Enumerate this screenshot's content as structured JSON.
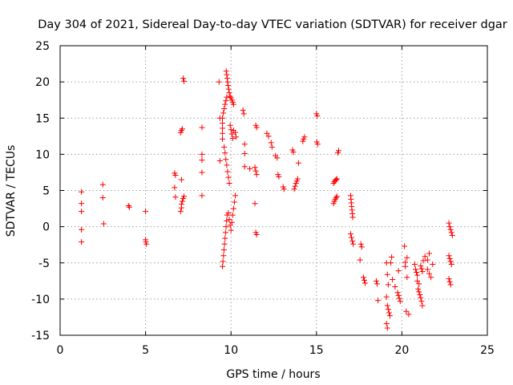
{
  "chart_data": {
    "type": "scatter",
    "title": "Day 304 of 2021, Sidereal Day-to-day VTEC variation (SDTVAR) for receiver dgar",
    "xlabel": "GPS time / hours",
    "ylabel": "SDTVAR / TECUs",
    "xlim": [
      0,
      25
    ],
    "ylim": [
      -15,
      25
    ],
    "xticks": [
      0,
      5,
      10,
      15,
      20,
      25
    ],
    "yticks": [
      -15,
      -10,
      -5,
      0,
      5,
      10,
      15,
      20,
      25
    ],
    "xtick_labels": [
      "0",
      "5",
      "10",
      "15",
      "20",
      "25"
    ],
    "ytick_labels": [
      "-15",
      "-10",
      "-5",
      "0",
      "5",
      "10",
      "15",
      "20",
      "25"
    ],
    "grid": true,
    "marker": "+",
    "color": "#ff0000",
    "series": [
      {
        "name": "SDTVAR",
        "points": [
          [
            1.25,
            4.8
          ],
          [
            1.25,
            3.2
          ],
          [
            1.25,
            2.1
          ],
          [
            1.25,
            -0.4
          ],
          [
            1.25,
            -2.1
          ],
          [
            2.5,
            5.8
          ],
          [
            2.5,
            4.0
          ],
          [
            2.55,
            0.4
          ],
          [
            4.0,
            2.9
          ],
          [
            4.05,
            2.7
          ],
          [
            5.0,
            2.1
          ],
          [
            5.0,
            -1.8
          ],
          [
            5.02,
            -2.1
          ],
          [
            5.05,
            -2.4
          ],
          [
            6.7,
            7.4
          ],
          [
            6.75,
            7.1
          ],
          [
            6.7,
            5.4
          ],
          [
            6.75,
            4.1
          ],
          [
            7.05,
            13.0
          ],
          [
            7.1,
            13.3
          ],
          [
            7.15,
            13.5
          ],
          [
            7.1,
            6.5
          ],
          [
            7.05,
            2.1
          ],
          [
            7.1,
            2.6
          ],
          [
            7.1,
            3.1
          ],
          [
            7.15,
            3.5
          ],
          [
            7.2,
            3.9
          ],
          [
            7.25,
            4.2
          ],
          [
            7.2,
            20.5
          ],
          [
            7.25,
            20.1
          ],
          [
            8.3,
            13.7
          ],
          [
            8.3,
            10.0
          ],
          [
            8.3,
            9.2
          ],
          [
            8.3,
            7.5
          ],
          [
            8.3,
            4.3
          ],
          [
            9.3,
            20.0
          ],
          [
            9.35,
            15.0
          ],
          [
            9.35,
            9.1
          ],
          [
            9.5,
            -5.5
          ],
          [
            9.53,
            -4.8
          ],
          [
            9.56,
            -4.0
          ],
          [
            9.59,
            -3.2
          ],
          [
            9.62,
            -2.4
          ],
          [
            9.65,
            -1.6
          ],
          [
            9.68,
            -0.8
          ],
          [
            9.71,
            0.0
          ],
          [
            9.74,
            0.8
          ],
          [
            9.77,
            1.6
          ],
          [
            9.5,
            12.1
          ],
          [
            9.5,
            12.9
          ],
          [
            9.5,
            13.6
          ],
          [
            9.5,
            14.3
          ],
          [
            9.5,
            15.0
          ],
          [
            9.55,
            15.7
          ],
          [
            9.6,
            16.3
          ],
          [
            9.65,
            16.9
          ],
          [
            9.7,
            17.4
          ],
          [
            9.75,
            17.9
          ],
          [
            9.6,
            11.0
          ],
          [
            9.65,
            10.2
          ],
          [
            9.7,
            9.3
          ],
          [
            9.75,
            8.5
          ],
          [
            9.8,
            7.6
          ],
          [
            9.85,
            6.8
          ],
          [
            9.9,
            6.0
          ],
          [
            9.72,
            21.5
          ],
          [
            9.75,
            21.0
          ],
          [
            9.78,
            20.5
          ],
          [
            9.8,
            20.0
          ],
          [
            9.83,
            19.5
          ],
          [
            9.86,
            19.0
          ],
          [
            9.9,
            18.5
          ],
          [
            9.95,
            18.0
          ],
          [
            10.0,
            17.8
          ],
          [
            10.05,
            17.5
          ],
          [
            10.1,
            17.2
          ],
          [
            10.15,
            16.9
          ],
          [
            9.85,
            1.9
          ],
          [
            9.9,
            1.0
          ],
          [
            9.95,
            0.2
          ],
          [
            10.0,
            -0.5
          ],
          [
            10.05,
            0.6
          ],
          [
            10.1,
            1.6
          ],
          [
            10.15,
            2.5
          ],
          [
            10.2,
            3.4
          ],
          [
            10.25,
            4.3
          ],
          [
            9.95,
            14.0
          ],
          [
            10.0,
            13.4
          ],
          [
            10.05,
            12.8
          ],
          [
            10.1,
            12.2
          ],
          [
            10.15,
            13.3
          ],
          [
            10.25,
            13.0
          ],
          [
            10.3,
            12.4
          ],
          [
            10.7,
            16.1
          ],
          [
            10.75,
            15.6
          ],
          [
            10.8,
            11.4
          ],
          [
            10.8,
            10.1
          ],
          [
            10.8,
            8.3
          ],
          [
            11.1,
            8.0
          ],
          [
            11.45,
            14.0
          ],
          [
            11.5,
            13.7
          ],
          [
            11.4,
            8.2
          ],
          [
            11.45,
            7.7
          ],
          [
            11.5,
            7.2
          ],
          [
            11.4,
            3.2
          ],
          [
            11.45,
            -0.8
          ],
          [
            11.5,
            -1.1
          ],
          [
            12.1,
            12.9
          ],
          [
            12.2,
            12.5
          ],
          [
            12.35,
            11.6
          ],
          [
            12.4,
            11.0
          ],
          [
            12.6,
            9.8
          ],
          [
            12.7,
            9.5
          ],
          [
            12.75,
            7.2
          ],
          [
            12.8,
            6.9
          ],
          [
            13.05,
            5.5
          ],
          [
            13.1,
            5.2
          ],
          [
            13.6,
            10.6
          ],
          [
            13.65,
            10.3
          ],
          [
            13.7,
            5.2
          ],
          [
            13.75,
            5.6
          ],
          [
            13.8,
            6.0
          ],
          [
            13.85,
            6.3
          ],
          [
            13.9,
            6.6
          ],
          [
            13.95,
            8.8
          ],
          [
            14.2,
            11.8
          ],
          [
            14.25,
            12.1
          ],
          [
            14.3,
            12.4
          ],
          [
            15.0,
            15.6
          ],
          [
            15.05,
            15.3
          ],
          [
            15.02,
            11.7
          ],
          [
            15.07,
            11.4
          ],
          [
            16.0,
            3.2
          ],
          [
            16.05,
            3.5
          ],
          [
            16.1,
            3.8
          ],
          [
            16.15,
            4.0
          ],
          [
            16.2,
            4.2
          ],
          [
            16.0,
            6.0
          ],
          [
            16.05,
            6.2
          ],
          [
            16.1,
            6.4
          ],
          [
            16.15,
            6.5
          ],
          [
            16.2,
            6.6
          ],
          [
            16.25,
            10.2
          ],
          [
            16.3,
            10.5
          ],
          [
            17.0,
            4.3
          ],
          [
            17.02,
            3.8
          ],
          [
            17.04,
            3.3
          ],
          [
            17.06,
            2.8
          ],
          [
            17.08,
            2.3
          ],
          [
            17.1,
            1.8
          ],
          [
            17.12,
            1.3
          ],
          [
            17.0,
            -1.0
          ],
          [
            17.05,
            -1.5
          ],
          [
            17.1,
            -2.0
          ],
          [
            17.15,
            -2.4
          ],
          [
            17.6,
            -2.4
          ],
          [
            17.65,
            -2.8
          ],
          [
            17.55,
            -4.6
          ],
          [
            17.75,
            -7.0
          ],
          [
            17.8,
            -7.4
          ],
          [
            17.85,
            -7.8
          ],
          [
            18.5,
            -7.5
          ],
          [
            18.55,
            -7.9
          ],
          [
            18.6,
            -10.2
          ],
          [
            19.1,
            -5.0
          ],
          [
            19.15,
            -6.6
          ],
          [
            19.2,
            -8.0
          ],
          [
            19.1,
            -9.7
          ],
          [
            19.15,
            -10.9
          ],
          [
            19.2,
            -11.4
          ],
          [
            19.25,
            -11.9
          ],
          [
            19.3,
            -12.3
          ],
          [
            19.1,
            -13.4
          ],
          [
            19.15,
            -14.0
          ],
          [
            19.35,
            -5.0
          ],
          [
            19.4,
            -4.2
          ],
          [
            19.45,
            -7.3
          ],
          [
            19.6,
            -8.3
          ],
          [
            19.75,
            -9.1
          ],
          [
            19.8,
            -9.5
          ],
          [
            19.85,
            -9.9
          ],
          [
            19.9,
            -10.3
          ],
          [
            19.8,
            -6.1
          ],
          [
            20.15,
            -2.7
          ],
          [
            20.2,
            -4.9
          ],
          [
            20.3,
            -4.3
          ],
          [
            20.2,
            -5.5
          ],
          [
            20.3,
            -7.0
          ],
          [
            20.25,
            -11.7
          ],
          [
            20.4,
            -12.1
          ],
          [
            20.75,
            -5.2
          ],
          [
            20.8,
            -5.9
          ],
          [
            20.85,
            -6.3
          ],
          [
            20.9,
            -6.7
          ],
          [
            20.95,
            -8.6
          ],
          [
            21.0,
            -9.0
          ],
          [
            21.05,
            -9.4
          ],
          [
            21.1,
            -9.8
          ],
          [
            21.15,
            -10.3
          ],
          [
            21.2,
            -10.9
          ],
          [
            20.9,
            -7.5
          ],
          [
            21.0,
            -7.9
          ],
          [
            21.1,
            -5.4
          ],
          [
            21.15,
            -5.8
          ],
          [
            21.2,
            -6.2
          ],
          [
            21.25,
            -4.7
          ],
          [
            21.35,
            -4.1
          ],
          [
            21.5,
            -5.9
          ],
          [
            21.6,
            -6.5
          ],
          [
            21.7,
            -7.0
          ],
          [
            21.5,
            -4.6
          ],
          [
            21.6,
            -3.7
          ],
          [
            21.8,
            -5.2
          ],
          [
            22.75,
            0.5
          ],
          [
            22.8,
            0.0
          ],
          [
            22.85,
            -0.4
          ],
          [
            22.9,
            -0.8
          ],
          [
            22.95,
            -1.2
          ],
          [
            22.75,
            -4.0
          ],
          [
            22.8,
            -4.4
          ],
          [
            22.85,
            -4.8
          ],
          [
            22.9,
            -5.2
          ],
          [
            22.75,
            -7.2
          ],
          [
            22.8,
            -7.6
          ],
          [
            22.85,
            -8.0
          ]
        ]
      }
    ]
  }
}
